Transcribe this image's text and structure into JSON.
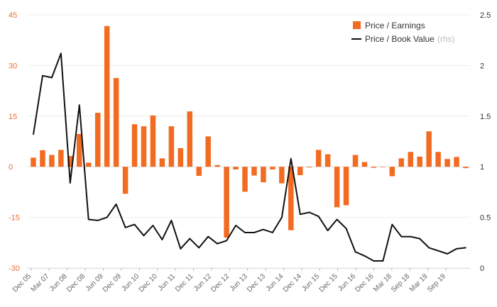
{
  "chart_data": {
    "type": "bar",
    "title": "",
    "xlabel": "",
    "ylabel_left": "",
    "ylabel_right": "",
    "ylim_left": [
      -30,
      45
    ],
    "ylim_right": [
      0,
      2.5
    ],
    "yticks_left": [
      45,
      30,
      15,
      0,
      -15,
      -30
    ],
    "yticks_right": [
      2.5,
      2,
      1.5,
      1,
      0.5,
      0
    ],
    "x_ticks": [
      "Dec 05",
      "Mar 07",
      "Jun 08",
      "Dec 08",
      "Jun 09",
      "Dec 09",
      "Jun 10",
      "Dec 10",
      "Jun 11",
      "Dec 11",
      "Jun 12",
      "Dec 12",
      "Jun 13",
      "Dec 13",
      "Jun 14",
      "Dec 14",
      "Jun 15",
      "Dec 15",
      "Jun 16",
      "Dec 16",
      "Mar 18",
      "Sep 18",
      "Mar 19",
      "Sep 19"
    ],
    "grid": true,
    "legend_position": "top-right",
    "series": [
      {
        "name": "Price / Earnings",
        "type": "bar",
        "axis": "left",
        "color": "#f26b21",
        "values": [
          2.7,
          4.9,
          3.5,
          5.0,
          3.2,
          9.7,
          1.2,
          16.0,
          41.7,
          26.3,
          -8.0,
          12.6,
          12.0,
          15.2,
          2.5,
          12.0,
          5.5,
          16.4,
          -2.7,
          9.0,
          0.5,
          -21.0,
          -0.8,
          -7.4,
          -2.6,
          -4.6,
          -0.8,
          -4.9,
          -18.8,
          -2.5,
          -0.2,
          5.0,
          3.7,
          -12.0,
          -11.4,
          3.5,
          1.4,
          -0.3,
          0.0,
          -2.8,
          2.5,
          4.4,
          3.0,
          10.5,
          4.4,
          2.3,
          2.9,
          -0.4
        ]
      },
      {
        "name": "Price / Book Value",
        "name_note": "(rhs)",
        "type": "line",
        "axis": "right",
        "color": "#111111",
        "values": [
          1.32,
          1.9,
          1.88,
          2.12,
          0.84,
          1.61,
          0.48,
          0.47,
          0.5,
          0.63,
          0.4,
          0.43,
          0.32,
          0.42,
          0.28,
          0.47,
          0.19,
          0.29,
          0.2,
          0.31,
          0.24,
          0.27,
          0.42,
          0.35,
          0.35,
          0.38,
          0.35,
          0.5,
          1.08,
          0.53,
          0.55,
          0.51,
          0.37,
          0.48,
          0.39,
          0.16,
          0.12,
          0.07,
          0.07,
          0.43,
          0.31,
          0.31,
          0.29,
          0.2,
          0.17,
          0.14,
          0.19,
          0.2
        ]
      }
    ]
  }
}
